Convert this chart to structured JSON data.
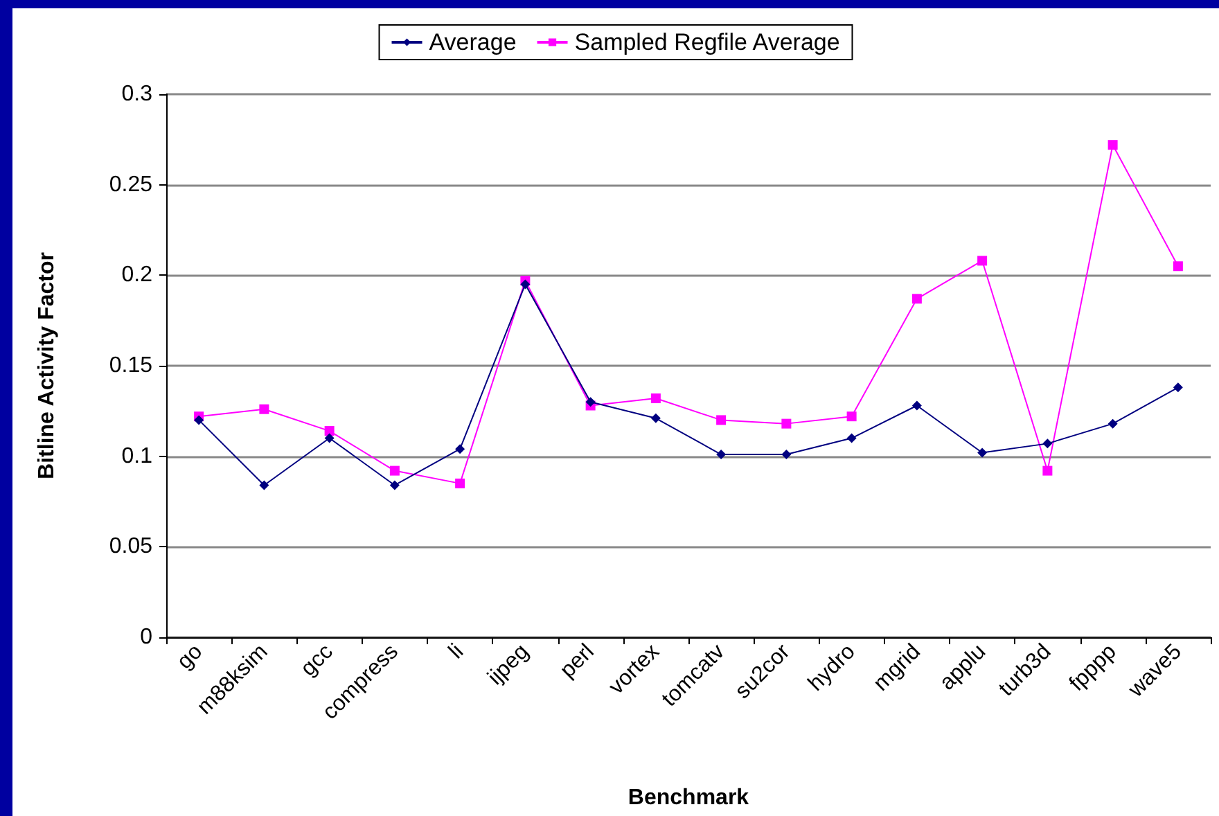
{
  "chart_data": {
    "type": "line",
    "xlabel": "Benchmark",
    "ylabel": "Bitline Activity Factor",
    "categories": [
      "go",
      "m88ksim",
      "gcc",
      "compress",
      "li",
      "ijpeg",
      "perl",
      "vortex",
      "tomcatv",
      "su2cor",
      "hydro",
      "mgrid",
      "applu",
      "turb3d",
      "fpppp",
      "wave5"
    ],
    "series": [
      {
        "name": "Average",
        "color": "#000080",
        "marker": "diamond",
        "values": [
          0.12,
          0.084,
          0.11,
          0.084,
          0.104,
          0.195,
          0.13,
          0.121,
          0.101,
          0.101,
          0.11,
          0.128,
          0.102,
          0.107,
          0.118,
          0.138
        ]
      },
      {
        "name": "Sampled Regfile Average",
        "color": "#ff00ff",
        "marker": "square",
        "values": [
          0.122,
          0.126,
          0.114,
          0.092,
          0.085,
          0.197,
          0.128,
          0.132,
          0.12,
          0.118,
          0.122,
          0.187,
          0.208,
          0.092,
          0.272,
          0.205
        ]
      }
    ],
    "ylim": [
      0,
      0.3
    ],
    "yticks": [
      0,
      0.05,
      0.1,
      0.15,
      0.2,
      0.25,
      0.3
    ],
    "grid": "y",
    "legend": "top",
    "line_style": "solid"
  }
}
